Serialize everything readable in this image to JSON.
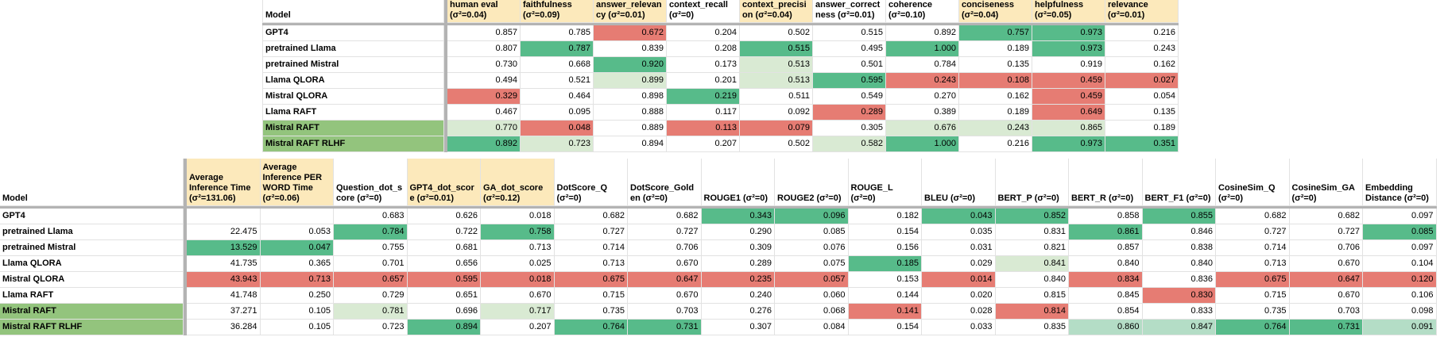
{
  "colors": {
    "green": "#57bb8a",
    "light_green": "#d9ead3",
    "mint": "#b4ddc6",
    "red": "#e67c73",
    "header_beige": "#fce9bb",
    "row_highlight_green": "#93c47d",
    "divider_gray": "#b3b3b3",
    "grid_line": "#e2e2e2"
  },
  "top_table": {
    "model_header": "Model",
    "columns": [
      {
        "label": "human eval (σ²=0.04)",
        "beige": true
      },
      {
        "label": "faithfulness (σ²=0.09)",
        "beige": true
      },
      {
        "label": "answer_relevancy (σ²=0.01)",
        "beige": true
      },
      {
        "label": "context_recall (σ²=0)",
        "beige": false
      },
      {
        "label": "context_precision (σ²=0.04)",
        "beige": true
      },
      {
        "label": "answer_correctness (σ²=0.01)",
        "beige": false
      },
      {
        "label": "coherence (σ²=0.10)",
        "beige": false
      },
      {
        "label": "conciseness (σ²=0.04)",
        "beige": true
      },
      {
        "label": "helpfulness (σ²=0.05)",
        "beige": true
      },
      {
        "label": "relevance (σ²=0.01)",
        "beige": true
      }
    ],
    "rows": [
      {
        "model": "GPT4",
        "highlight": false,
        "values": [
          "0.857",
          "0.785",
          "0.672",
          "0.204",
          "0.502",
          "0.515",
          "0.892",
          "0.757",
          "0.973",
          "0.216"
        ],
        "fills": [
          "",
          "",
          "r",
          "",
          "",
          "",
          "",
          "g",
          "g",
          ""
        ]
      },
      {
        "model": "pretrained Llama",
        "highlight": false,
        "values": [
          "0.807",
          "0.787",
          "0.839",
          "0.208",
          "0.515",
          "0.495",
          "1.000",
          "0.189",
          "0.973",
          "0.243"
        ],
        "fills": [
          "",
          "g",
          "",
          "",
          "g",
          "",
          "g",
          "",
          "g",
          ""
        ]
      },
      {
        "model": "pretrained Mistral",
        "highlight": false,
        "values": [
          "0.730",
          "0.668",
          "0.920",
          "0.173",
          "0.513",
          "0.501",
          "0.784",
          "0.135",
          "0.919",
          "0.162"
        ],
        "fills": [
          "",
          "",
          "g",
          "",
          "lg",
          "",
          "",
          "",
          "",
          ""
        ]
      },
      {
        "model": "Llama QLORA",
        "highlight": false,
        "values": [
          "0.494",
          "0.521",
          "0.899",
          "0.201",
          "0.513",
          "0.595",
          "0.243",
          "0.108",
          "0.459",
          "0.027"
        ],
        "fills": [
          "",
          "",
          "lg",
          "",
          "lg",
          "g",
          "r",
          "r",
          "r",
          "r"
        ]
      },
      {
        "model": "Mistral QLORA",
        "highlight": false,
        "values": [
          "0.329",
          "0.464",
          "0.898",
          "0.219",
          "0.511",
          "0.549",
          "0.270",
          "0.162",
          "0.459",
          "0.054"
        ],
        "fills": [
          "r",
          "",
          "",
          "g",
          "",
          "",
          "",
          "",
          "r",
          ""
        ]
      },
      {
        "model": "Llama RAFT",
        "highlight": false,
        "values": [
          "0.467",
          "0.095",
          "0.888",
          "0.117",
          "0.092",
          "0.289",
          "0.389",
          "0.189",
          "0.649",
          "0.135"
        ],
        "fills": [
          "",
          "",
          "",
          "",
          "",
          "r",
          "",
          "",
          "r",
          ""
        ]
      },
      {
        "model": "Mistral RAFT",
        "highlight": true,
        "values": [
          "0.770",
          "0.048",
          "0.889",
          "0.113",
          "0.079",
          "0.305",
          "0.676",
          "0.243",
          "0.865",
          "0.189"
        ],
        "fills": [
          "lg",
          "r",
          "",
          "r",
          "r",
          "",
          "lg",
          "lg",
          "lg",
          ""
        ]
      },
      {
        "model": "Mistral RAFT RLHF",
        "highlight": true,
        "values": [
          "0.892",
          "0.723",
          "0.894",
          "0.207",
          "0.502",
          "0.582",
          "1.000",
          "0.216",
          "0.973",
          "0.351"
        ],
        "fills": [
          "g",
          "lg",
          "",
          "",
          "",
          "lg",
          "g",
          "",
          "g",
          "g"
        ]
      }
    ]
  },
  "bottom_table": {
    "model_header": "Model",
    "columns": [
      {
        "label": "Average Inference Time (σ²=131.06)",
        "beige": true
      },
      {
        "label": "Average Inference PER WORD Time (σ²=0.06)",
        "beige": true
      },
      {
        "label": "Question_dot_score (σ²=0)",
        "beige": false
      },
      {
        "label": "GPT4_dot_score (σ²=0.01)",
        "beige": true
      },
      {
        "label": "GA_dot_score (σ²=0.12)",
        "beige": true
      },
      {
        "label": "DotScore_Q (σ²=0)",
        "beige": false
      },
      {
        "label": "DotScore_Golden (σ²=0)",
        "beige": false
      },
      {
        "label": "ROUGE1 (σ²=0)",
        "beige": false
      },
      {
        "label": "ROUGE2 (σ²=0)",
        "beige": false
      },
      {
        "label": "ROUGE_L (σ²=0)",
        "beige": false
      },
      {
        "label": "BLEU (σ²=0)",
        "beige": false
      },
      {
        "label": "BERT_P (σ²=0)",
        "beige": false
      },
      {
        "label": "BERT_R (σ²=0)",
        "beige": false
      },
      {
        "label": "BERT_F1 (σ²=0)",
        "beige": false
      },
      {
        "label": "CosineSim_Q (σ²=0)",
        "beige": false
      },
      {
        "label": "CosineSim_GA (σ²=0)",
        "beige": false
      },
      {
        "label": "Embedding Distance (σ²=0)",
        "beige": false
      }
    ],
    "rows": [
      {
        "model": "GPT4",
        "highlight": false,
        "values": [
          "",
          "",
          "0.683",
          "0.626",
          "0.018",
          "0.682",
          "0.682",
          "0.343",
          "0.096",
          "0.182",
          "0.043",
          "0.852",
          "0.858",
          "0.855",
          "0.682",
          "0.682",
          "0.097"
        ],
        "fills": [
          "",
          "",
          "",
          "",
          "",
          "",
          "",
          "g",
          "g",
          "",
          "g",
          "g",
          "",
          "g",
          "",
          "",
          ""
        ]
      },
      {
        "model": "pretrained Llama",
        "highlight": false,
        "values": [
          "22.475",
          "0.053",
          "0.784",
          "0.722",
          "0.758",
          "0.727",
          "0.727",
          "0.290",
          "0.085",
          "0.154",
          "0.035",
          "0.831",
          "0.861",
          "0.846",
          "0.727",
          "0.727",
          "0.085"
        ],
        "fills": [
          "",
          "",
          "g",
          "",
          "g",
          "",
          "",
          "",
          "",
          "",
          "",
          "",
          "g",
          "",
          "",
          "",
          "g"
        ]
      },
      {
        "model": "pretrained Mistral",
        "highlight": false,
        "values": [
          "13.529",
          "0.047",
          "0.755",
          "0.681",
          "0.713",
          "0.714",
          "0.706",
          "0.309",
          "0.076",
          "0.156",
          "0.031",
          "0.821",
          "0.857",
          "0.838",
          "0.714",
          "0.706",
          "0.097"
        ],
        "fills": [
          "g",
          "g",
          "",
          "",
          "",
          "",
          "",
          "",
          "",
          "",
          "",
          "",
          "",
          "",
          "",
          "",
          ""
        ]
      },
      {
        "model": "Llama QLORA",
        "highlight": false,
        "values": [
          "41.735",
          "0.365",
          "0.701",
          "0.656",
          "0.025",
          "0.713",
          "0.670",
          "0.289",
          "0.075",
          "0.185",
          "0.029",
          "0.841",
          "0.840",
          "0.840",
          "0.713",
          "0.670",
          "0.104"
        ],
        "fills": [
          "",
          "",
          "",
          "",
          "",
          "",
          "",
          "",
          "",
          "g",
          "",
          "lg",
          "",
          "",
          "",
          "",
          ""
        ]
      },
      {
        "model": "Mistral QLORA",
        "highlight": false,
        "values": [
          "43.943",
          "0.713",
          "0.657",
          "0.595",
          "0.018",
          "0.675",
          "0.647",
          "0.235",
          "0.057",
          "0.153",
          "0.014",
          "0.840",
          "0.834",
          "0.836",
          "0.675",
          "0.647",
          "0.120"
        ],
        "fills": [
          "r",
          "r",
          "r",
          "r",
          "r",
          "r",
          "r",
          "r",
          "r",
          "",
          "r",
          "",
          "r",
          "",
          "r",
          "r",
          "r"
        ]
      },
      {
        "model": "Llama RAFT",
        "highlight": false,
        "values": [
          "41.748",
          "0.250",
          "0.729",
          "0.651",
          "0.670",
          "0.715",
          "0.670",
          "0.240",
          "0.060",
          "0.144",
          "0.020",
          "0.815",
          "0.845",
          "0.830",
          "0.715",
          "0.670",
          "0.106"
        ],
        "fills": [
          "",
          "",
          "",
          "",
          "",
          "",
          "",
          "",
          "",
          "",
          "",
          "",
          "",
          "r",
          "",
          "",
          ""
        ]
      },
      {
        "model": "Mistral RAFT",
        "highlight": true,
        "values": [
          "37.271",
          "0.105",
          "0.781",
          "0.696",
          "0.717",
          "0.735",
          "0.703",
          "0.276",
          "0.068",
          "0.141",
          "0.028",
          "0.814",
          "0.854",
          "0.833",
          "0.735",
          "0.703",
          "0.098"
        ],
        "fills": [
          "",
          "",
          "lg",
          "",
          "lg",
          "",
          "",
          "",
          "",
          "r",
          "",
          "r",
          "",
          "",
          "",
          "",
          ""
        ]
      },
      {
        "model": "Mistral RAFT RLHF",
        "highlight": true,
        "values": [
          "36.284",
          "0.105",
          "0.723",
          "0.894",
          "0.207",
          "0.764",
          "0.731",
          "0.307",
          "0.084",
          "0.154",
          "0.033",
          "0.835",
          "0.860",
          "0.847",
          "0.764",
          "0.731",
          "0.091"
        ],
        "fills": [
          "",
          "",
          "",
          "g",
          "",
          "g",
          "g",
          "",
          "",
          "",
          "",
          "",
          "m",
          "m",
          "g",
          "g",
          "m"
        ]
      }
    ]
  }
}
